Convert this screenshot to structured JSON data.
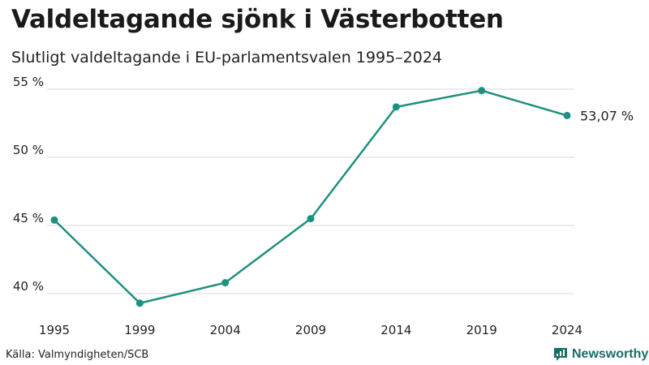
{
  "title": "Valdeltagande sjönk i Västerbotten",
  "subtitle": "Slutligt valdeltagande i EU-parlamentsvalen 1995–2024",
  "source": "Källa: Valmyndigheten/SCB",
  "brand": {
    "name": "Newsworthy",
    "icon": "newsworthy-logo-icon"
  },
  "colors": {
    "line": "#1f9080",
    "grid": "#d9d9d9",
    "text": "#222222",
    "brand": "#1a6e68"
  },
  "chart_data": {
    "type": "line",
    "title": "Valdeltagande sjönk i Västerbotten",
    "subtitle": "Slutligt valdeltagande i EU-parlamentsvalen 1995–2024",
    "xlabel": "",
    "ylabel": "",
    "ylim": [
      38.5,
      55.5
    ],
    "yticks": [
      40,
      45,
      50,
      55
    ],
    "ytick_labels": [
      "40 %",
      "45 %",
      "50 %",
      "55 %"
    ],
    "categories": [
      "1995",
      "1999",
      "2004",
      "2009",
      "2014",
      "2019",
      "2024"
    ],
    "series": [
      {
        "name": "Valdeltagande",
        "values": [
          45.4,
          39.3,
          40.8,
          45.5,
          53.7,
          54.9,
          53.07
        ]
      }
    ],
    "end_label": "53,07 %",
    "grid": true
  }
}
